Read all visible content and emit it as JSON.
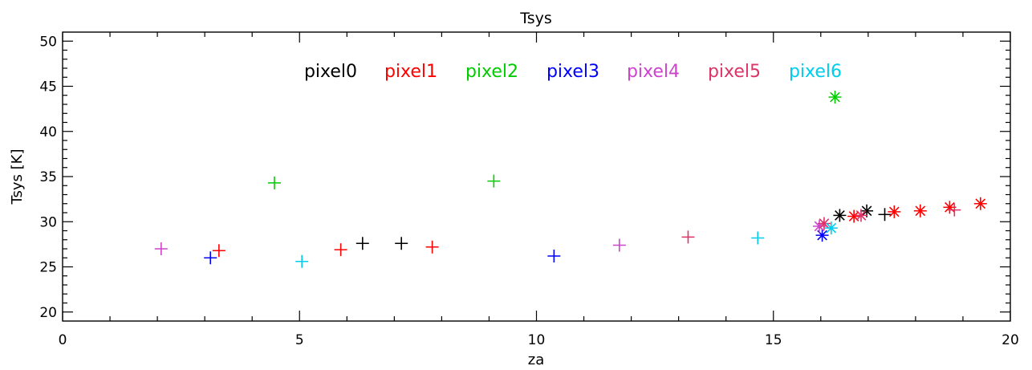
{
  "chart_data": {
    "type": "scatter",
    "title": "Tsys",
    "xlabel": "za",
    "ylabel": "Tsys [K]",
    "xlim": [
      0,
      20
    ],
    "ylim": [
      19,
      51
    ],
    "x_ticks": [
      "0",
      "5",
      "10",
      "15",
      "20"
    ],
    "y_ticks": [
      "20",
      "25",
      "30",
      "35",
      "40",
      "45",
      "50"
    ],
    "grid": false,
    "legend_position": "top-center",
    "series": [
      {
        "name": "pixel0",
        "color": "#000000",
        "plus": [
          [
            6.33,
            27.6
          ],
          [
            7.15,
            27.6
          ],
          [
            17.35,
            30.8
          ]
        ],
        "star": [
          [
            16.4,
            30.7
          ],
          [
            16.97,
            31.2
          ]
        ]
      },
      {
        "name": "pixel1",
        "color": "#ff0000",
        "plus": [
          [
            3.3,
            26.8
          ],
          [
            5.87,
            26.9
          ],
          [
            7.8,
            27.2
          ]
        ],
        "star": [
          [
            16.7,
            30.6
          ],
          [
            17.55,
            31.1
          ],
          [
            18.1,
            31.2
          ],
          [
            18.72,
            31.6
          ],
          [
            19.37,
            32.0
          ]
        ]
      },
      {
        "name": "pixel2",
        "color": "#00cc00",
        "plus": [
          [
            4.47,
            34.3
          ],
          [
            9.1,
            34.5
          ]
        ],
        "star": [
          [
            16.3,
            43.8
          ]
        ]
      },
      {
        "name": "pixel3",
        "color": "#0000ff",
        "plus": [
          [
            3.12,
            26.0
          ],
          [
            10.37,
            26.2
          ]
        ],
        "star": [
          [
            16.03,
            28.5
          ]
        ]
      },
      {
        "name": "pixel4",
        "color": "#cc44cc",
        "plus": [
          [
            2.08,
            27.0
          ],
          [
            11.75,
            27.4
          ]
        ],
        "star": [
          [
            15.97,
            29.5
          ]
        ]
      },
      {
        "name": "pixel5",
        "color": "#dd3366",
        "plus": [
          [
            13.2,
            28.3
          ],
          [
            18.82,
            31.3
          ]
        ],
        "star": [
          [
            16.07,
            29.8
          ],
          [
            16.85,
            30.7
          ]
        ]
      },
      {
        "name": "pixel6",
        "color": "#00ccee",
        "plus": [
          [
            5.05,
            25.6
          ],
          [
            14.67,
            28.2
          ]
        ],
        "star": [
          [
            16.22,
            29.3
          ]
        ]
      }
    ]
  }
}
